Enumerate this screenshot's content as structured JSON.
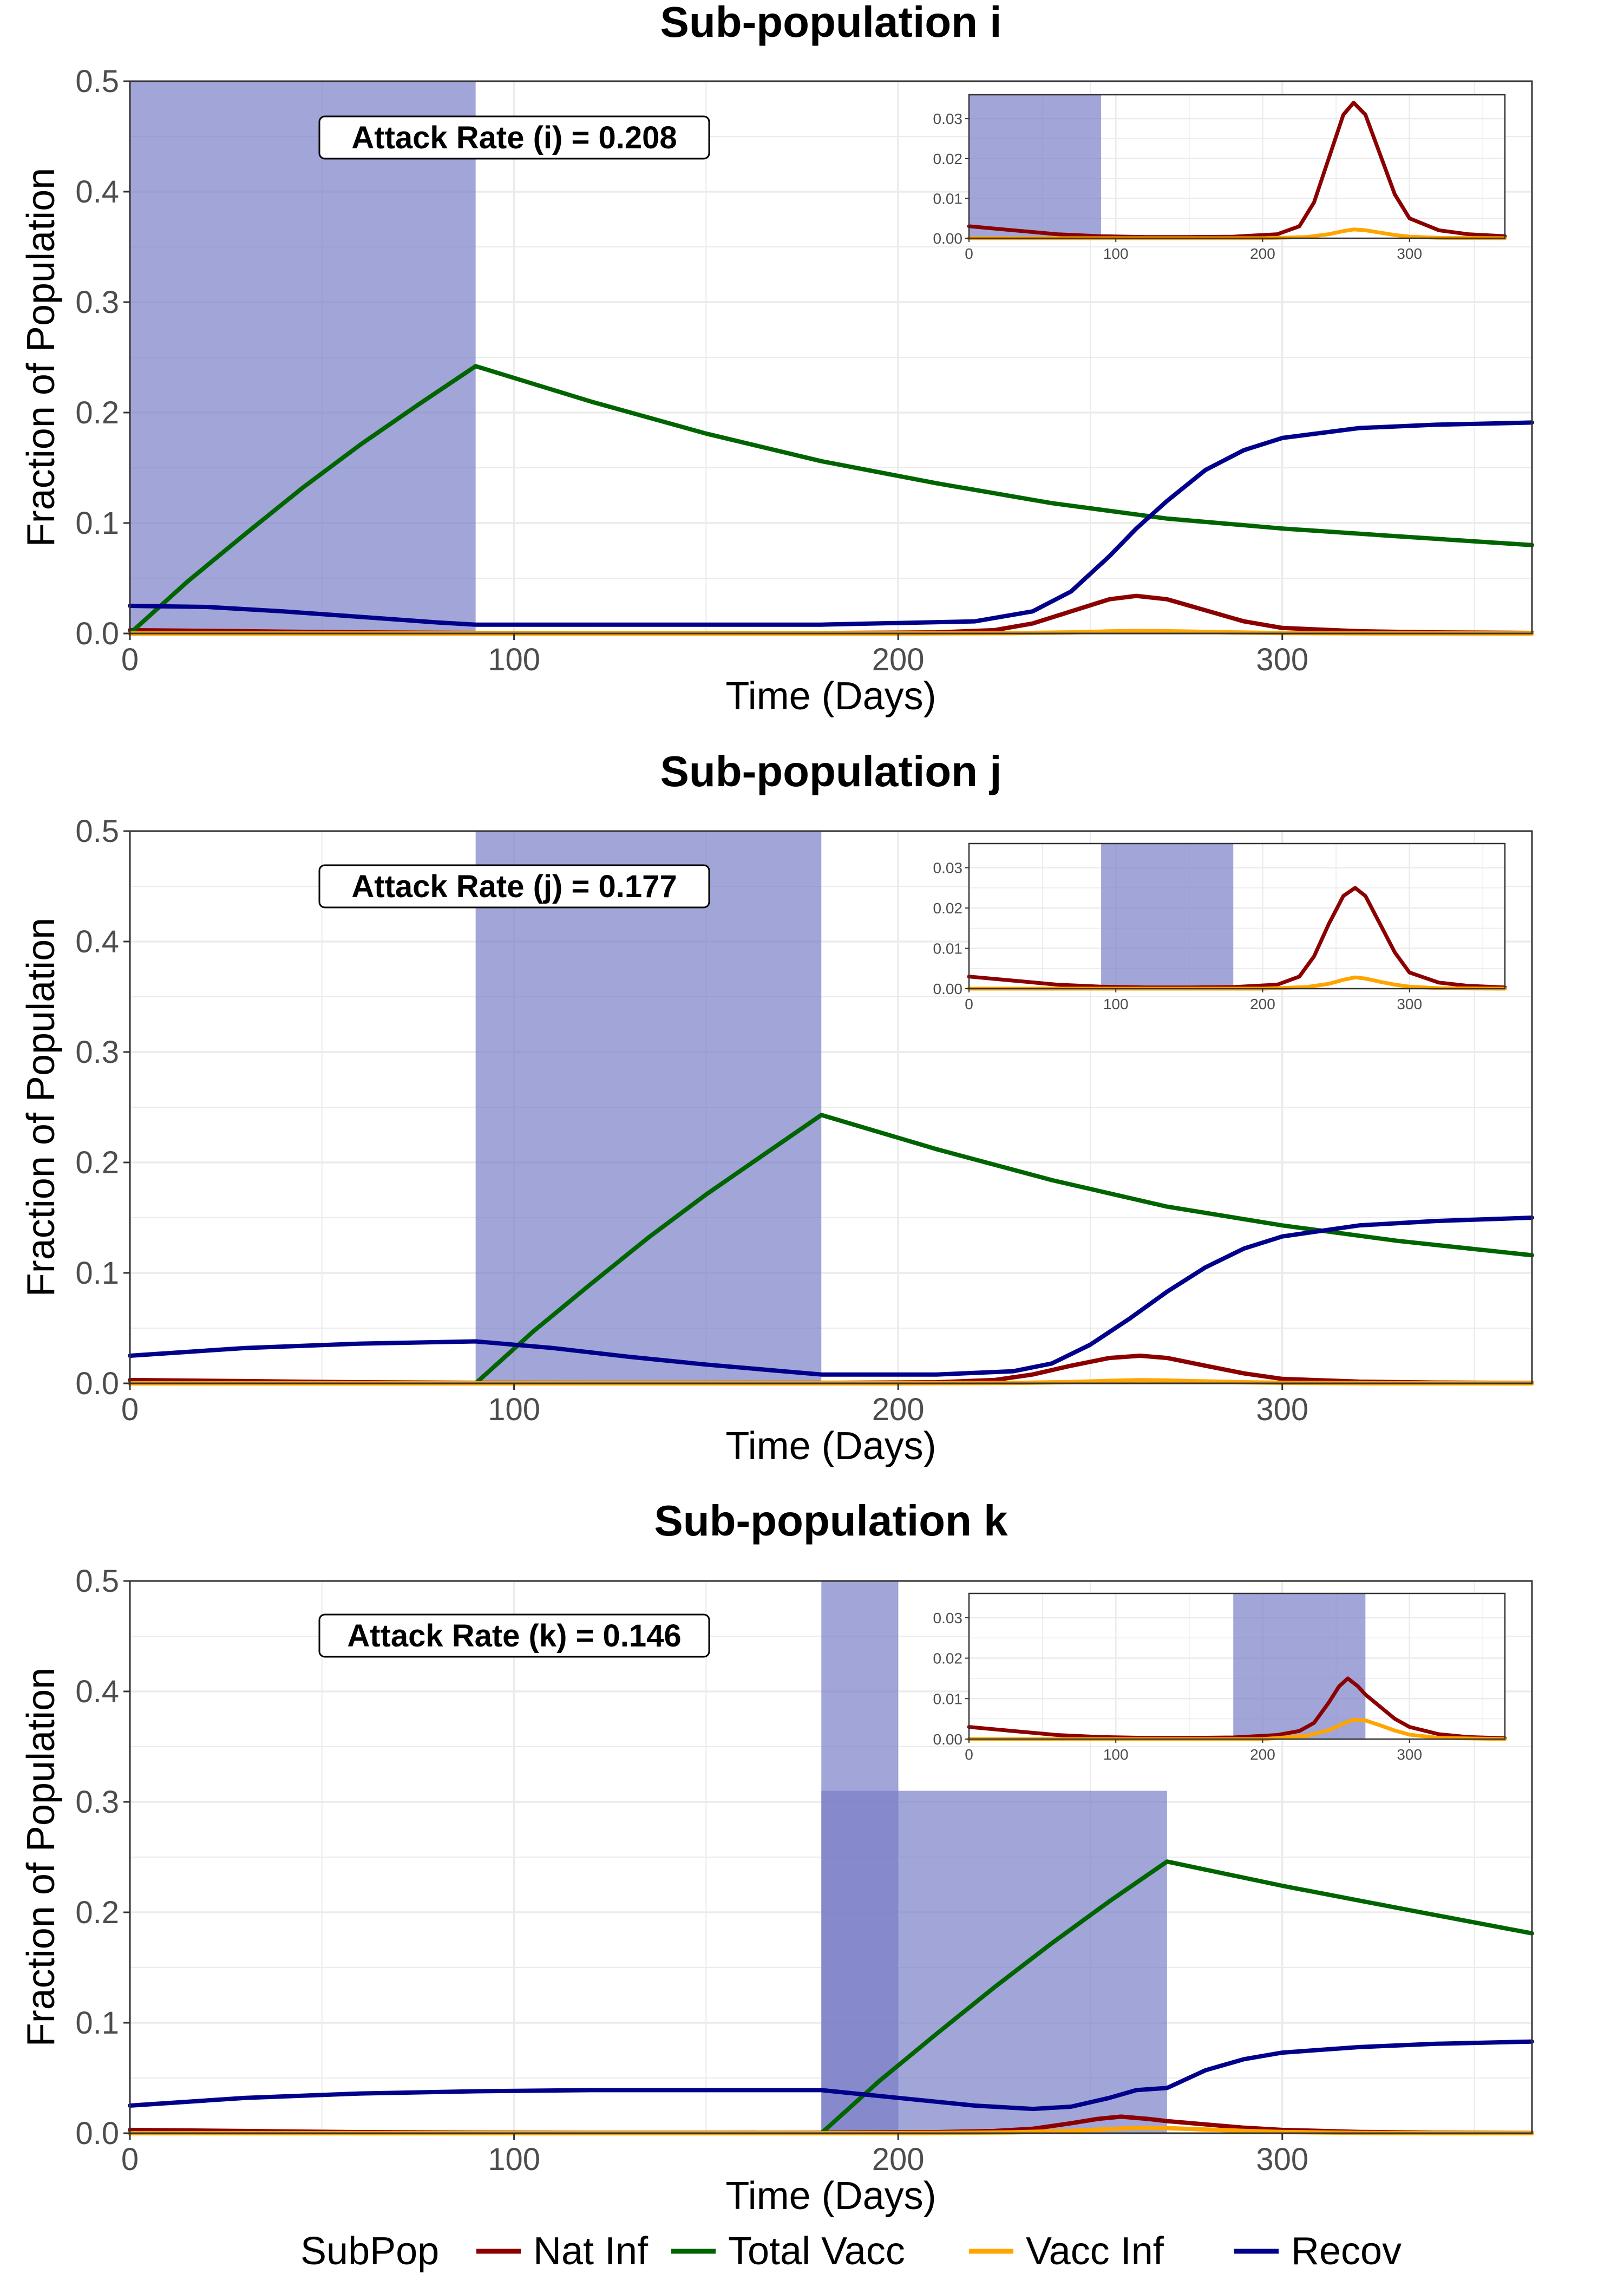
{
  "chart_data": [
    {
      "type": "line",
      "title": "Sub-population i",
      "xlabel": "Time (Days)",
      "ylabel": "Fraction of Population",
      "xlim": [
        0,
        365
      ],
      "ylim": [
        0,
        0.5
      ],
      "x_ticks": [
        0,
        100,
        200,
        300
      ],
      "y_ticks": [
        0.0,
        0.1,
        0.2,
        0.3,
        0.4,
        0.5
      ],
      "y_tick_labels": [
        "0.0",
        "0.1",
        "0.2",
        "0.3",
        "0.4",
        "0.5"
      ],
      "grid": true,
      "annotation": "Attack Rate (i) = 0.208",
      "vaccination_window": [
        {
          "x": [
            0,
            90
          ],
          "y_top": 0.5
        }
      ],
      "series": [
        {
          "name": "Nat Inf",
          "color": "#8b0000",
          "x": [
            0,
            30,
            60,
            90,
            120,
            150,
            180,
            210,
            225,
            235,
            245,
            255,
            262,
            270,
            280,
            290,
            300,
            320,
            340,
            365
          ],
          "y": [
            0.003,
            0.002,
            0.001,
            0.0005,
            0.0003,
            0.0003,
            0.0004,
            0.001,
            0.003,
            0.009,
            0.02,
            0.031,
            0.034,
            0.031,
            0.021,
            0.011,
            0.005,
            0.002,
            0.001,
            0.0005
          ]
        },
        {
          "name": "Total Vacc",
          "color": "#006400",
          "x": [
            0,
            15,
            30,
            45,
            60,
            75,
            90,
            120,
            150,
            180,
            210,
            240,
            270,
            300,
            330,
            365
          ],
          "y": [
            0.0,
            0.047,
            0.09,
            0.132,
            0.171,
            0.207,
            0.242,
            0.21,
            0.181,
            0.156,
            0.136,
            0.118,
            0.104,
            0.095,
            0.088,
            0.08
          ]
        },
        {
          "name": "Vacc Inf",
          "color": "#ffa500",
          "x": [
            0,
            200,
            230,
            245,
            255,
            262,
            270,
            280,
            290,
            300,
            320,
            365
          ],
          "y": [
            0.0,
            0.0,
            0.0003,
            0.001,
            0.0018,
            0.0022,
            0.002,
            0.0014,
            0.0008,
            0.0004,
            0.0001,
            0.0
          ]
        },
        {
          "name": "Recov",
          "color": "#00008b",
          "x": [
            0,
            20,
            40,
            60,
            80,
            90,
            120,
            180,
            220,
            235,
            245,
            255,
            262,
            270,
            280,
            290,
            300,
            320,
            340,
            365
          ],
          "y": [
            0.025,
            0.024,
            0.02,
            0.015,
            0.01,
            0.008,
            0.008,
            0.008,
            0.011,
            0.02,
            0.038,
            0.07,
            0.095,
            0.12,
            0.148,
            0.166,
            0.177,
            0.186,
            0.189,
            0.191
          ]
        }
      ],
      "inset": {
        "xlim": [
          0,
          365
        ],
        "ylim": [
          0,
          0.036
        ],
        "x_ticks": [
          0,
          100,
          200,
          300
        ],
        "y_ticks": [
          0.0,
          0.01,
          0.02,
          0.03
        ],
        "y_tick_labels": [
          "0.00",
          "0.01",
          "0.02",
          "0.03"
        ],
        "vaccination_window": [
          {
            "x": [
              0,
              90
            ],
            "y_top": 0.036
          }
        ]
      }
    },
    {
      "type": "line",
      "title": "Sub-population j",
      "xlabel": "Time (Days)",
      "ylabel": "Fraction of Population",
      "xlim": [
        0,
        365
      ],
      "ylim": [
        0,
        0.5
      ],
      "x_ticks": [
        0,
        100,
        200,
        300
      ],
      "y_ticks": [
        0.0,
        0.1,
        0.2,
        0.3,
        0.4,
        0.5
      ],
      "y_tick_labels": [
        "0.0",
        "0.1",
        "0.2",
        "0.3",
        "0.4",
        "0.5"
      ],
      "grid": true,
      "annotation": "Attack Rate (j) = 0.177",
      "vaccination_window": [
        {
          "x": [
            90,
            180
          ],
          "y_top": 0.5
        }
      ],
      "series": [
        {
          "name": "Nat Inf",
          "color": "#8b0000",
          "x": [
            0,
            30,
            60,
            90,
            120,
            150,
            180,
            210,
            225,
            235,
            245,
            255,
            263,
            270,
            280,
            290,
            300,
            320,
            340,
            365
          ],
          "y": [
            0.003,
            0.002,
            0.001,
            0.0005,
            0.0003,
            0.0003,
            0.0004,
            0.001,
            0.003,
            0.008,
            0.016,
            0.023,
            0.025,
            0.023,
            0.016,
            0.009,
            0.004,
            0.0015,
            0.0007,
            0.0003
          ]
        },
        {
          "name": "Total Vacc",
          "color": "#006400",
          "x": [
            0,
            90,
            105,
            120,
            135,
            150,
            165,
            180,
            210,
            240,
            270,
            300,
            330,
            365
          ],
          "y": [
            0.0,
            0.0,
            0.047,
            0.09,
            0.132,
            0.171,
            0.207,
            0.243,
            0.212,
            0.184,
            0.16,
            0.143,
            0.129,
            0.116
          ]
        },
        {
          "name": "Vacc Inf",
          "color": "#ffa500",
          "x": [
            0,
            200,
            230,
            245,
            255,
            263,
            270,
            280,
            290,
            300,
            320,
            365
          ],
          "y": [
            0.0,
            0.0,
            0.0004,
            0.0012,
            0.0022,
            0.0028,
            0.0025,
            0.0017,
            0.001,
            0.0005,
            0.0001,
            0.0
          ]
        },
        {
          "name": "Recov",
          "color": "#00008b",
          "x": [
            0,
            30,
            60,
            90,
            110,
            130,
            150,
            170,
            180,
            210,
            230,
            240,
            250,
            260,
            270,
            280,
            290,
            300,
            320,
            340,
            365
          ],
          "y": [
            0.025,
            0.032,
            0.036,
            0.038,
            0.032,
            0.024,
            0.017,
            0.011,
            0.008,
            0.008,
            0.011,
            0.018,
            0.035,
            0.058,
            0.083,
            0.105,
            0.122,
            0.133,
            0.143,
            0.147,
            0.15
          ]
        }
      ],
      "inset": {
        "xlim": [
          0,
          365
        ],
        "ylim": [
          0,
          0.036
        ],
        "x_ticks": [
          0,
          100,
          200,
          300
        ],
        "y_ticks": [
          0.0,
          0.01,
          0.02,
          0.03
        ],
        "y_tick_labels": [
          "0.00",
          "0.01",
          "0.02",
          "0.03"
        ],
        "vaccination_window": [
          {
            "x": [
              90,
              180
            ],
            "y_top": 0.036
          }
        ]
      }
    },
    {
      "type": "line",
      "title": "Sub-population k",
      "xlabel": "Time (Days)",
      "ylabel": "Fraction of Population",
      "xlim": [
        0,
        365
      ],
      "ylim": [
        0,
        0.5
      ],
      "x_ticks": [
        0,
        100,
        200,
        300
      ],
      "y_ticks": [
        0.0,
        0.1,
        0.2,
        0.3,
        0.4,
        0.5
      ],
      "y_tick_labels": [
        "0.0",
        "0.1",
        "0.2",
        "0.3",
        "0.4",
        "0.5"
      ],
      "grid": true,
      "annotation": "Attack Rate (k) = 0.146",
      "vaccination_window": [
        {
          "x": [
            180,
            270
          ],
          "y_top": 0.31
        },
        {
          "x": [
            180,
            200
          ],
          "y_top": 0.5
        }
      ],
      "series": [
        {
          "name": "Nat Inf",
          "color": "#8b0000",
          "x": [
            0,
            30,
            60,
            90,
            120,
            150,
            180,
            210,
            225,
            235,
            245,
            252,
            258,
            265,
            270,
            280,
            290,
            300,
            320,
            340,
            365
          ],
          "y": [
            0.003,
            0.002,
            0.001,
            0.0005,
            0.0003,
            0.0003,
            0.0004,
            0.001,
            0.002,
            0.004,
            0.009,
            0.013,
            0.015,
            0.013,
            0.011,
            0.008,
            0.005,
            0.003,
            0.0012,
            0.0005,
            0.0002
          ]
        },
        {
          "name": "Total Vacc",
          "color": "#006400",
          "x": [
            0,
            180,
            195,
            210,
            225,
            240,
            255,
            270,
            300,
            330,
            365
          ],
          "y": [
            0.0,
            0.0,
            0.047,
            0.09,
            0.132,
            0.172,
            0.21,
            0.246,
            0.224,
            0.204,
            0.181
          ]
        },
        {
          "name": "Vacc Inf",
          "color": "#ffa500",
          "x": [
            0,
            200,
            230,
            245,
            255,
            262,
            270,
            280,
            290,
            300,
            320,
            365
          ],
          "y": [
            0.0,
            0.0,
            0.0008,
            0.0022,
            0.0038,
            0.0048,
            0.0046,
            0.0034,
            0.0021,
            0.0011,
            0.0003,
            0.0
          ]
        },
        {
          "name": "Recov",
          "color": "#00008b",
          "x": [
            0,
            30,
            60,
            90,
            120,
            150,
            180,
            200,
            220,
            235,
            245,
            255,
            262,
            270,
            280,
            290,
            300,
            320,
            340,
            365
          ],
          "y": [
            0.025,
            0.032,
            0.036,
            0.038,
            0.039,
            0.039,
            0.039,
            0.032,
            0.025,
            0.022,
            0.024,
            0.032,
            0.039,
            0.041,
            0.057,
            0.067,
            0.073,
            0.078,
            0.081,
            0.083
          ]
        }
      ],
      "inset": {
        "xlim": [
          0,
          365
        ],
        "ylim": [
          0,
          0.036
        ],
        "x_ticks": [
          0,
          100,
          200,
          300
        ],
        "y_ticks": [
          0.0,
          0.01,
          0.02,
          0.03
        ],
        "y_tick_labels": [
          "0.00",
          "0.01",
          "0.02",
          "0.03"
        ],
        "vaccination_window": [
          {
            "x": [
              180,
              270
            ],
            "y_top": 0.036
          }
        ]
      }
    }
  ],
  "legend": {
    "title": "SubPop",
    "position": "bottom",
    "items": [
      {
        "label": "Nat Inf",
        "color": "#8b0000"
      },
      {
        "label": "Total Vacc",
        "color": "#006400"
      },
      {
        "label": "Vacc Inf",
        "color": "#ffa500"
      },
      {
        "label": "Recov",
        "color": "#00008b"
      }
    ]
  },
  "colors": {
    "vaccination_window": "#7b7fc7",
    "grid": "#ebebeb",
    "axis_text": "#4d4d4d"
  }
}
